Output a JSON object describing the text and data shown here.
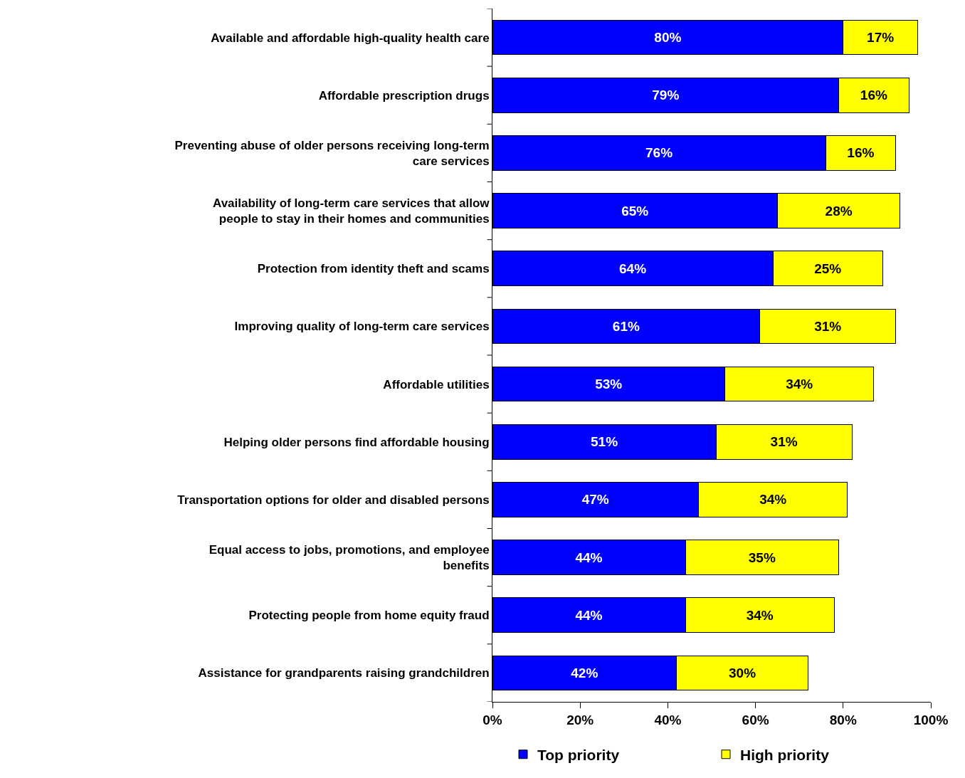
{
  "chart_data": {
    "type": "bar",
    "orientation": "horizontal",
    "stacked": true,
    "categories": [
      "Available and affordable high-quality health care",
      "Affordable prescription drugs",
      "Preventing abuse of older persons receiving long-term care services",
      "Availability of long-term care services that allow people to stay in their homes and communities",
      "Protection from identity theft and scams",
      "Improving quality of long-term care services",
      "Affordable utilities",
      "Helping older persons find affordable housing",
      "Transportation options for older and disabled persons",
      "Equal access to jobs, promotions, and employee benefits",
      "Protecting people from home equity fraud",
      "Assistance for grandparents raising grandchildren"
    ],
    "series": [
      {
        "name": "Top priority",
        "color": "#0000ff",
        "values": [
          80,
          79,
          76,
          65,
          64,
          61,
          53,
          51,
          47,
          44,
          44,
          42
        ],
        "value_labels": [
          "80%",
          "79%",
          "76%",
          "65%",
          "64%",
          "61%",
          "53%",
          "51%",
          "47%",
          "44%",
          "44%",
          "42%"
        ]
      },
      {
        "name": "High priority",
        "color": "#ffff00",
        "values": [
          17,
          16,
          16,
          28,
          25,
          31,
          34,
          31,
          34,
          35,
          34,
          30
        ],
        "value_labels": [
          "17%",
          "16%",
          "16%",
          "28%",
          "25%",
          "31%",
          "34%",
          "31%",
          "34%",
          "35%",
          "34%",
          "30%"
        ]
      }
    ],
    "xlim": [
      0,
      100
    ],
    "xticks": [
      {
        "value": 0,
        "label": "0%"
      },
      {
        "value": 20,
        "label": "20%"
      },
      {
        "value": 40,
        "label": "40%"
      },
      {
        "value": 60,
        "label": "60%"
      },
      {
        "value": 80,
        "label": "80%"
      },
      {
        "value": 100,
        "label": "100%"
      }
    ],
    "legend": "bottom"
  }
}
